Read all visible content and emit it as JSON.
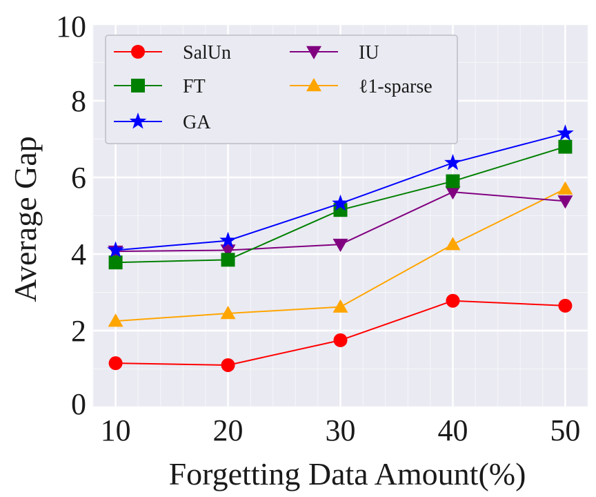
{
  "chart_data": {
    "type": "line",
    "xlabel": "Forgetting Data Amount(%)",
    "ylabel": "Average Gap",
    "x": [
      10,
      20,
      30,
      40,
      50
    ],
    "xticks": [
      "10",
      "20",
      "30",
      "40",
      "50"
    ],
    "yticks": [
      "0",
      "2",
      "4",
      "6",
      "8",
      "10"
    ],
    "xlim": [
      8,
      52
    ],
    "ylim": [
      0,
      10
    ],
    "grid": true,
    "legend_position": "top-left",
    "series": [
      {
        "name": "SalUn",
        "values": [
          1.15,
          1.1,
          1.75,
          2.78,
          2.65
        ],
        "color": "#ff0000",
        "marker": "circle"
      },
      {
        "name": "FT",
        "values": [
          3.78,
          3.85,
          5.15,
          5.9,
          6.8
        ],
        "color": "#008000",
        "marker": "square"
      },
      {
        "name": "GA",
        "values": [
          4.1,
          4.35,
          5.32,
          6.38,
          7.15
        ],
        "color": "#0000ff",
        "marker": "star"
      },
      {
        "name": "IU",
        "values": [
          4.07,
          4.1,
          4.25,
          5.62,
          5.38
        ],
        "color": "#800080",
        "marker": "triangle-down"
      },
      {
        "name": "ℓ1-sparse",
        "values": [
          2.25,
          2.45,
          2.62,
          4.25,
          5.7
        ],
        "color": "#ffa500",
        "marker": "triangle-up"
      }
    ]
  }
}
